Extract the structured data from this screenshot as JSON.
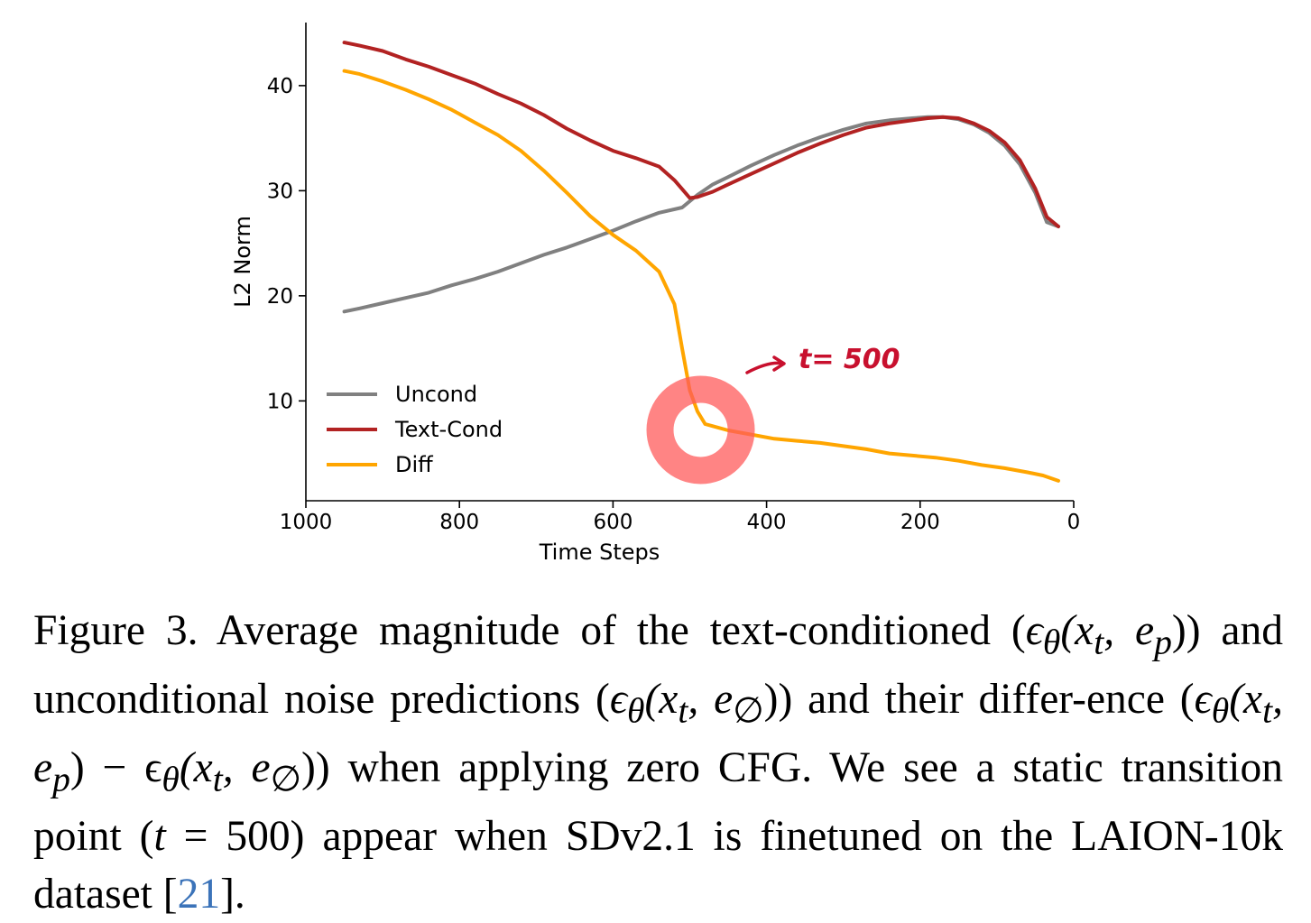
{
  "chart_data": {
    "type": "line",
    "xlabel": "Time Steps",
    "ylabel": "L2 Norm",
    "xlim": [
      1000,
      0
    ],
    "ylim": [
      0.5,
      46
    ],
    "xticks": [
      1000,
      800,
      600,
      400,
      200,
      0
    ],
    "xtick_labels": [
      "1000",
      "800",
      "600",
      "400",
      "200",
      "0"
    ],
    "yticks": [
      10,
      20,
      30,
      40
    ],
    "ytick_labels": [
      "10",
      "20",
      "30",
      "40"
    ],
    "legend_position": "lower-left",
    "series": [
      {
        "name": "Uncond",
        "color": "#808080",
        "x": [
          950,
          930,
          900,
          870,
          840,
          810,
          780,
          750,
          720,
          690,
          660,
          630,
          600,
          570,
          540,
          510,
          490,
          470,
          450,
          420,
          390,
          360,
          330,
          300,
          270,
          240,
          210,
          190,
          170,
          150,
          130,
          110,
          90,
          70,
          50,
          35,
          20
        ],
        "y": [
          18.5,
          18.8,
          19.3,
          19.8,
          20.3,
          21,
          21.6,
          22.3,
          23.1,
          23.9,
          24.6,
          25.4,
          26.2,
          27.1,
          27.9,
          28.4,
          29.6,
          30.6,
          31.3,
          32.4,
          33.4,
          34.3,
          35.1,
          35.8,
          36.4,
          36.7,
          36.9,
          37,
          37,
          36.8,
          36.3,
          35.5,
          34.3,
          32.5,
          29.8,
          27,
          26.6
        ]
      },
      {
        "name": "Text-Cond",
        "color": "#b22222",
        "x": [
          950,
          930,
          900,
          870,
          840,
          810,
          780,
          750,
          720,
          690,
          660,
          630,
          600,
          570,
          540,
          520,
          500,
          490,
          470,
          450,
          420,
          390,
          360,
          330,
          300,
          270,
          240,
          210,
          190,
          170,
          150,
          130,
          110,
          90,
          70,
          50,
          35,
          20
        ],
        "y": [
          44.1,
          43.8,
          43.3,
          42.5,
          41.8,
          41,
          40.2,
          39.2,
          38.3,
          37.2,
          35.9,
          34.8,
          33.8,
          33.1,
          32.3,
          31,
          29.3,
          29.4,
          29.9,
          30.6,
          31.6,
          32.6,
          33.6,
          34.5,
          35.3,
          36,
          36.4,
          36.7,
          36.9,
          37,
          36.9,
          36.4,
          35.7,
          34.6,
          32.9,
          30.2,
          27.5,
          26.6
        ]
      },
      {
        "name": "Diff",
        "color": "#ffa500",
        "x": [
          950,
          930,
          900,
          870,
          840,
          810,
          780,
          750,
          720,
          690,
          660,
          630,
          600,
          570,
          540,
          520,
          510,
          500,
          490,
          480,
          470,
          450,
          420,
          390,
          360,
          330,
          300,
          270,
          240,
          210,
          180,
          150,
          120,
          90,
          60,
          40,
          20
        ],
        "y": [
          41.4,
          41.1,
          40.4,
          39.6,
          38.7,
          37.7,
          36.5,
          35.3,
          33.8,
          31.9,
          29.8,
          27.6,
          25.8,
          24.3,
          22.3,
          19.2,
          15,
          11,
          9,
          7.8,
          7.6,
          7.2,
          6.8,
          6.4,
          6.2,
          6,
          5.7,
          5.4,
          5,
          4.8,
          4.6,
          4.3,
          3.9,
          3.6,
          3.2,
          2.9,
          2.4
        ]
      }
    ],
    "annotation": {
      "text": "t= 500",
      "highlight_at": {
        "x": 480,
        "y": 7.5
      }
    }
  },
  "caption": {
    "seg1": "Figure 3. Average magnitude of the text-conditioned (",
    "math1": "ϵ",
    "sub_theta1": "θ",
    "math1b": "(x",
    "sub_t1": "t",
    "math1c": ", e",
    "sub_p1": "p",
    "math1d": "))",
    "seg2": " and unconditional noise predictions (",
    "math2": "ϵ",
    "sub_theta2": "θ",
    "math2b": "(x",
    "sub_t2": "t",
    "math2c": ", e",
    "sub_empty2": "∅",
    "math2d": "))",
    "seg3": " and their differ-ence (",
    "math3": "ϵ",
    "sub_theta3": "θ",
    "math3b": "(x",
    "sub_t3": "t",
    "math3c": ", e",
    "sub_p3": "p",
    "math3d": ") − ϵ",
    "sub_theta3b": "θ",
    "math3e": "(x",
    "sub_t3b": "t",
    "math3f": ", e",
    "sub_empty3": "∅",
    "math3g": "))",
    "seg4": " when applying zero CFG. We see a static transition point (",
    "math4": "t",
    "seg4b": " = 500) appear when SDv2.1 is finetuned on the LAION-10k dataset [",
    "cite": "21",
    "seg5": "]."
  }
}
